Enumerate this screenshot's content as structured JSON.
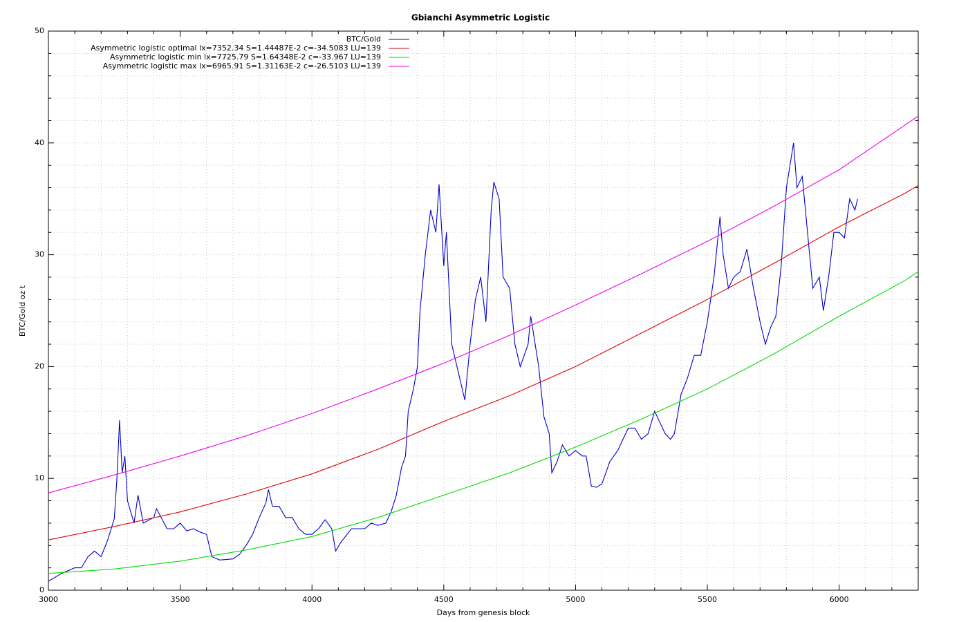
{
  "chart_data": {
    "type": "line",
    "title": "Gbianchi Asymmetric Logistic",
    "x_label": "Days from genesis block",
    "y_label": "BTC/Gold oz t",
    "xlim": [
      3000,
      6300
    ],
    "ylim": [
      0,
      50
    ],
    "xticks": [
      3000,
      3500,
      4000,
      4500,
      5000,
      5500,
      6000
    ],
    "yticks": [
      0,
      10,
      20,
      30,
      40,
      50
    ],
    "grid": true,
    "minor_grid": true,
    "legend": "top",
    "series": [
      {
        "name": "BTC/Gold",
        "color": "#0000cc",
        "x": [
          3000,
          3050,
          3100,
          3125,
          3150,
          3175,
          3200,
          3225,
          3250,
          3260,
          3270,
          3280,
          3290,
          3300,
          3325,
          3340,
          3360,
          3400,
          3410,
          3450,
          3475,
          3500,
          3525,
          3550,
          3575,
          3600,
          3620,
          3650,
          3700,
          3725,
          3750,
          3775,
          3800,
          3825,
          3835,
          3850,
          3875,
          3900,
          3925,
          3950,
          3975,
          4000,
          4025,
          4050,
          4075,
          4090,
          4110,
          4150,
          4175,
          4200,
          4225,
          4250,
          4280,
          4300,
          4320,
          4340,
          4355,
          4365,
          4385,
          4400,
          4410,
          4430,
          4450,
          4470,
          4482,
          4500,
          4510,
          4530,
          4550,
          4570,
          4580,
          4600,
          4620,
          4640,
          4660,
          4680,
          4690,
          4710,
          4725,
          4750,
          4770,
          4790,
          4820,
          4830,
          4860,
          4880,
          4900,
          4910,
          4930,
          4950,
          4975,
          5000,
          5025,
          5040,
          5060,
          5080,
          5100,
          5130,
          5160,
          5180,
          5200,
          5225,
          5250,
          5275,
          5300,
          5320,
          5340,
          5360,
          5375,
          5400,
          5425,
          5450,
          5475,
          5500,
          5525,
          5548,
          5560,
          5580,
          5600,
          5625,
          5650,
          5675,
          5700,
          5720,
          5740,
          5760,
          5780,
          5800,
          5827,
          5840,
          5860,
          5880,
          5900,
          5925,
          5940,
          5960,
          5980,
          6000,
          6020,
          6040,
          6060,
          6070
        ],
        "values": [
          0.8,
          1.5,
          2.0,
          2.0,
          3.0,
          3.5,
          3.0,
          4.5,
          6.4,
          10,
          15.2,
          10.5,
          12,
          8,
          6,
          8.5,
          6,
          6.5,
          7.3,
          5.5,
          5.5,
          6,
          5.3,
          5.5,
          5.2,
          5,
          3,
          2.7,
          2.8,
          3.2,
          4,
          5,
          6.5,
          7.8,
          9,
          7.5,
          7.5,
          6.5,
          6.5,
          5.5,
          5,
          5,
          5.5,
          6.3,
          5.5,
          3.5,
          4.3,
          5.5,
          5.5,
          5.5,
          6,
          5.8,
          6,
          7,
          8.5,
          11,
          12,
          16,
          18,
          20,
          25,
          30,
          34,
          32,
          36.3,
          29,
          32,
          22,
          20,
          18,
          17,
          22,
          26,
          28,
          24,
          34,
          36.5,
          35,
          28,
          27,
          22,
          20,
          22,
          24.5,
          20,
          15.5,
          14,
          10.5,
          11.5,
          13,
          12,
          12.5,
          12,
          12,
          9.3,
          9.2,
          9.5,
          11.5,
          12.5,
          13.5,
          14.5,
          14.5,
          13.5,
          14,
          16,
          15,
          14,
          13.5,
          14,
          17.5,
          19,
          21,
          21,
          24,
          28,
          33.4,
          30,
          27,
          28,
          28.5,
          30.5,
          27,
          24,
          22,
          23.5,
          24.5,
          29,
          36,
          40,
          36,
          37,
          32,
          27,
          28,
          25,
          28,
          32,
          32,
          31.5,
          35,
          34,
          35
        ]
      },
      {
        "name": "Asymmetric logistic optimal lx=7352.34 S=1.44487E-2 c=-34.5083 LU=139",
        "color": "#e00000",
        "x": [
          3000,
          3250,
          3500,
          3750,
          4000,
          4250,
          4500,
          4750,
          5000,
          5250,
          5500,
          5750,
          6000,
          6250,
          6300
        ],
        "values": [
          4.5,
          5.7,
          7.0,
          8.6,
          10.4,
          12.6,
          15.1,
          17.4,
          20.0,
          23,
          26,
          29.2,
          32.5,
          35.5,
          36.2
        ]
      },
      {
        "name": "Asymmetric logistic min lx=7725.79 S=1.64348E-2 c=-33.967 LU=139",
        "color": "#00dd00",
        "x": [
          3000,
          3250,
          3500,
          3750,
          4000,
          4250,
          4500,
          4750,
          5000,
          5250,
          5500,
          5750,
          6000,
          6250,
          6300
        ],
        "values": [
          1.5,
          1.9,
          2.6,
          3.6,
          4.8,
          6.5,
          8.5,
          10.5,
          12.8,
          15.3,
          18,
          21.1,
          24.5,
          27.7,
          28.5
        ]
      },
      {
        "name": "Asymmetric logistic max lx=6965.91 S=1.31163E-2 c=-26.5103 LU=139",
        "color": "#ee00ee",
        "x": [
          3000,
          3250,
          3500,
          3750,
          4000,
          4250,
          4500,
          4750,
          5000,
          5250,
          5500,
          5750,
          6000,
          6250,
          6300
        ],
        "values": [
          8.7,
          10.3,
          12.0,
          13.8,
          15.8,
          18,
          20.3,
          22.8,
          25.5,
          28.3,
          31.2,
          34.3,
          37.6,
          41.6,
          42.4
        ]
      }
    ]
  }
}
